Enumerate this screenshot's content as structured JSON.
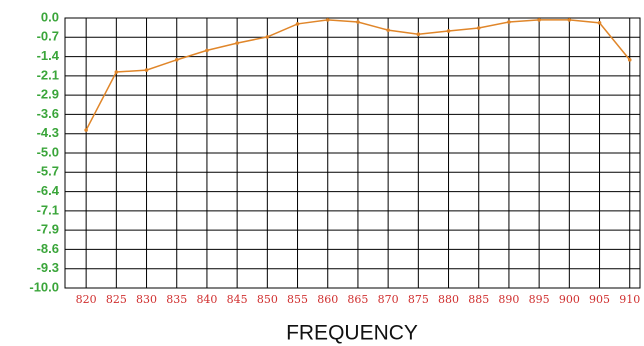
{
  "chart_data": {
    "type": "line",
    "x_label": "FREQUENCY",
    "x": [
      820,
      825,
      830,
      835,
      840,
      845,
      850,
      855,
      860,
      865,
      870,
      875,
      880,
      885,
      890,
      895,
      900,
      905,
      910
    ],
    "values": [
      -4.15,
      -2.0,
      -1.93,
      -1.55,
      -1.2,
      -0.93,
      -0.7,
      -0.22,
      -0.07,
      -0.15,
      -0.45,
      -0.6,
      -0.48,
      -0.37,
      -0.15,
      -0.07,
      -0.07,
      -0.18,
      -1.55
    ],
    "color": "#e0862a",
    "xlim": [
      816.5,
      911.7
    ],
    "xticks": [
      820,
      825,
      830,
      835,
      840,
      845,
      850,
      855,
      860,
      865,
      870,
      875,
      880,
      885,
      890,
      895,
      900,
      905,
      910
    ],
    "ylim": [
      -10,
      0
    ],
    "yticks": [
      {
        "value": 0,
        "label": "0.0"
      },
      {
        "value": -0.714,
        "label": "-0.7"
      },
      {
        "value": -1.429,
        "label": "-1.4"
      },
      {
        "value": -2.143,
        "label": "-2.1"
      },
      {
        "value": -2.857,
        "label": "-2.9"
      },
      {
        "value": -3.571,
        "label": "-3.6"
      },
      {
        "value": -4.286,
        "label": "-4.3"
      },
      {
        "value": -5,
        "label": "-5.0"
      },
      {
        "value": -5.714,
        "label": "-5.7"
      },
      {
        "value": -6.429,
        "label": "-6.4"
      },
      {
        "value": -7.143,
        "label": "-7.1"
      },
      {
        "value": -7.857,
        "label": "-7.9"
      },
      {
        "value": -8.571,
        "label": "-8.6"
      },
      {
        "value": -9.286,
        "label": "-9.3"
      },
      {
        "value": -10,
        "label": "-10.0"
      }
    ],
    "grid": true
  }
}
